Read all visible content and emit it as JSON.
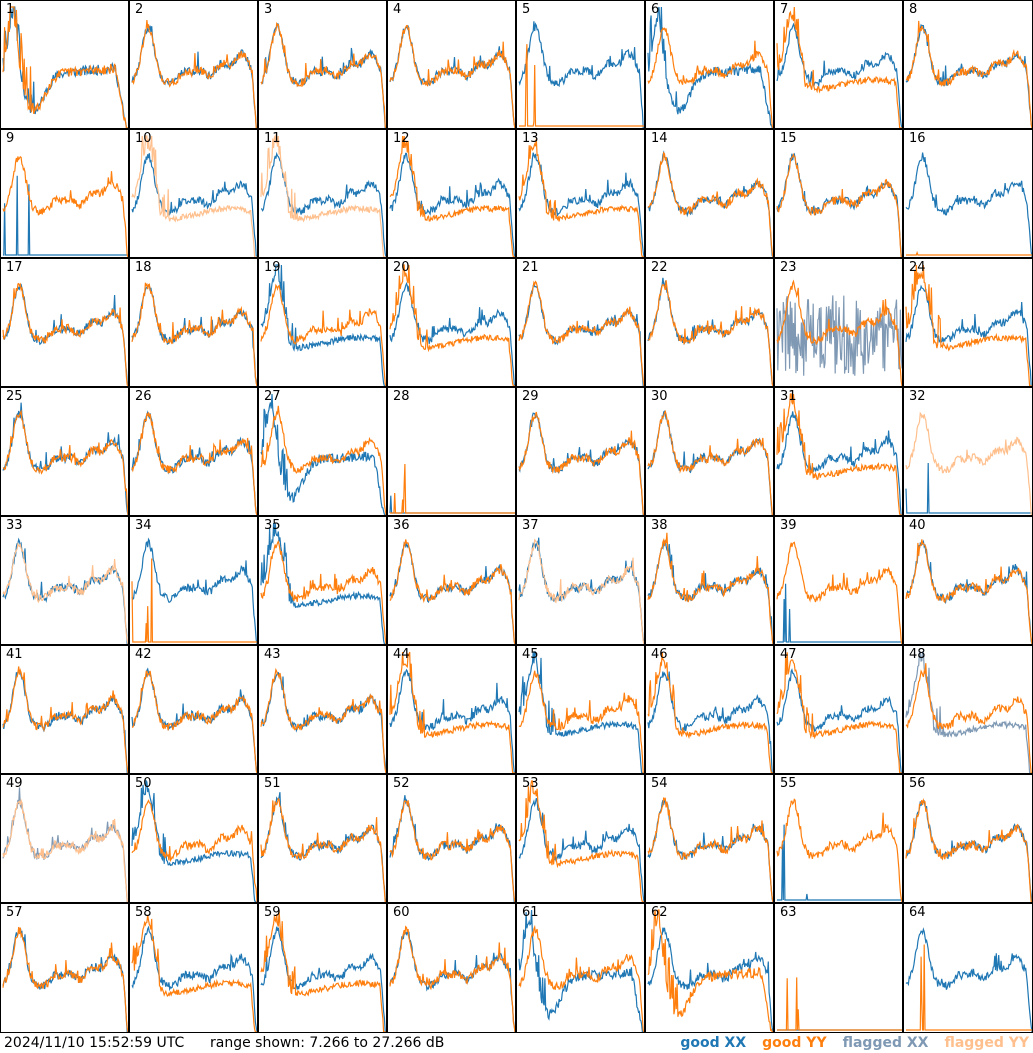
{
  "footer": {
    "timestamp": "2024/11/10 15:52:59 UTC",
    "range_text": "range shown: 7.266 to 27.266 dB"
  },
  "legend": [
    {
      "label": "good XX",
      "color": "#1f77b4"
    },
    {
      "label": "good YY",
      "color": "#ff7f0e"
    },
    {
      "label": "flagged XX",
      "color": "#7f99b4"
    },
    {
      "label": "flagged YY",
      "color": "#ffc08e"
    }
  ],
  "colors": {
    "good_xx": "#1f77b4",
    "good_yy": "#ff7f0e",
    "flagged_xx": "#7f99b4",
    "flagged_yy": "#ffc08e"
  },
  "chart_data": {
    "type": "line",
    "range_db": [
      7.266,
      27.266
    ],
    "grid_rows": 8,
    "grid_cols": 8,
    "panels": [
      {
        "id": "1",
        "xx": "good",
        "yy": "good",
        "xx_style": "sag",
        "yy_style": "sag"
      },
      {
        "id": "2",
        "xx": "good",
        "yy": "good",
        "xx_style": "normal",
        "yy_style": "normal"
      },
      {
        "id": "3",
        "xx": "good",
        "yy": "good",
        "xx_style": "normal",
        "yy_style": "normal"
      },
      {
        "id": "4",
        "xx": "good",
        "yy": "good",
        "xx_style": "normal",
        "yy_style": "normal"
      },
      {
        "id": "5",
        "xx": "good",
        "yy": "good",
        "xx_style": "normal",
        "yy_style": "dead"
      },
      {
        "id": "6",
        "xx": "good",
        "yy": "good",
        "xx_style": "sag",
        "yy_style": "normal"
      },
      {
        "id": "7",
        "xx": "good",
        "yy": "good",
        "xx_style": "normal",
        "yy_style": "low"
      },
      {
        "id": "8",
        "xx": "good",
        "yy": "good",
        "xx_style": "normal",
        "yy_style": "normal"
      },
      {
        "id": "9",
        "xx": "good",
        "yy": "good",
        "xx_style": "dead",
        "yy_style": "normal"
      },
      {
        "id": "10",
        "xx": "good",
        "yy": "flagged",
        "xx_style": "normal",
        "yy_style": "low"
      },
      {
        "id": "11",
        "xx": "good",
        "yy": "flagged",
        "xx_style": "normal",
        "yy_style": "low"
      },
      {
        "id": "12",
        "xx": "good",
        "yy": "good",
        "xx_style": "normal",
        "yy_style": "low"
      },
      {
        "id": "13",
        "xx": "good",
        "yy": "good",
        "xx_style": "normal",
        "yy_style": "low"
      },
      {
        "id": "14",
        "xx": "good",
        "yy": "good",
        "xx_style": "normal",
        "yy_style": "normal"
      },
      {
        "id": "15",
        "xx": "good",
        "yy": "good",
        "xx_style": "normal",
        "yy_style": "normal"
      },
      {
        "id": "16",
        "xx": "good",
        "yy": "good",
        "xx_style": "normal",
        "yy_style": "dead"
      },
      {
        "id": "17",
        "xx": "good",
        "yy": "good",
        "xx_style": "normal",
        "yy_style": "normal"
      },
      {
        "id": "18",
        "xx": "good",
        "yy": "good",
        "xx_style": "normal",
        "yy_style": "normal"
      },
      {
        "id": "19",
        "xx": "good",
        "yy": "good",
        "xx_style": "low",
        "yy_style": "normal"
      },
      {
        "id": "20",
        "xx": "good",
        "yy": "good",
        "xx_style": "normal",
        "yy_style": "low"
      },
      {
        "id": "21",
        "xx": "good",
        "yy": "good",
        "xx_style": "normal",
        "yy_style": "normal"
      },
      {
        "id": "22",
        "xx": "good",
        "yy": "good",
        "xx_style": "normal",
        "yy_style": "normal"
      },
      {
        "id": "23",
        "xx": "flagged",
        "yy": "good",
        "xx_style": "noise",
        "yy_style": "normal"
      },
      {
        "id": "24",
        "xx": "good",
        "yy": "good",
        "xx_style": "normal",
        "yy_style": "low"
      },
      {
        "id": "25",
        "xx": "good",
        "yy": "good",
        "xx_style": "normal",
        "yy_style": "normal"
      },
      {
        "id": "26",
        "xx": "good",
        "yy": "good",
        "xx_style": "normal",
        "yy_style": "normal"
      },
      {
        "id": "27",
        "xx": "good",
        "yy": "good",
        "xx_style": "sag",
        "yy_style": "normal"
      },
      {
        "id": "28",
        "xx": "good",
        "yy": "good",
        "xx_style": "dead",
        "yy_style": "dead"
      },
      {
        "id": "29",
        "xx": "good",
        "yy": "good",
        "xx_style": "normal",
        "yy_style": "normal"
      },
      {
        "id": "30",
        "xx": "good",
        "yy": "good",
        "xx_style": "normal",
        "yy_style": "normal"
      },
      {
        "id": "31",
        "xx": "good",
        "yy": "good",
        "xx_style": "normal",
        "yy_style": "low"
      },
      {
        "id": "32",
        "xx": "good",
        "yy": "flagged",
        "xx_style": "dead",
        "yy_style": "normal"
      },
      {
        "id": "33",
        "xx": "good",
        "yy": "flagged",
        "xx_style": "normal",
        "yy_style": "normal"
      },
      {
        "id": "34",
        "xx": "good",
        "yy": "good",
        "xx_style": "normal",
        "yy_style": "dead"
      },
      {
        "id": "35",
        "xx": "good",
        "yy": "good",
        "xx_style": "low",
        "yy_style": "normal"
      },
      {
        "id": "36",
        "xx": "good",
        "yy": "good",
        "xx_style": "normal",
        "yy_style": "normal"
      },
      {
        "id": "37",
        "xx": "good",
        "yy": "flagged",
        "xx_style": "normal",
        "yy_style": "normal"
      },
      {
        "id": "38",
        "xx": "good",
        "yy": "good",
        "xx_style": "normal",
        "yy_style": "normal"
      },
      {
        "id": "39",
        "xx": "good",
        "yy": "good",
        "xx_style": "dead",
        "yy_style": "normal"
      },
      {
        "id": "40",
        "xx": "good",
        "yy": "good",
        "xx_style": "normal",
        "yy_style": "normal"
      },
      {
        "id": "41",
        "xx": "good",
        "yy": "good",
        "xx_style": "normal",
        "yy_style": "normal"
      },
      {
        "id": "42",
        "xx": "good",
        "yy": "good",
        "xx_style": "normal",
        "yy_style": "normal"
      },
      {
        "id": "43",
        "xx": "good",
        "yy": "good",
        "xx_style": "normal",
        "yy_style": "normal"
      },
      {
        "id": "44",
        "xx": "good",
        "yy": "good",
        "xx_style": "normal",
        "yy_style": "low"
      },
      {
        "id": "45",
        "xx": "good",
        "yy": "good",
        "xx_style": "low",
        "yy_style": "normal"
      },
      {
        "id": "46",
        "xx": "good",
        "yy": "good",
        "xx_style": "normal",
        "yy_style": "low"
      },
      {
        "id": "47",
        "xx": "good",
        "yy": "good",
        "xx_style": "normal",
        "yy_style": "low"
      },
      {
        "id": "48",
        "xx": "flagged",
        "yy": "good",
        "xx_style": "low",
        "yy_style": "normal"
      },
      {
        "id": "49",
        "xx": "flagged",
        "yy": "flagged",
        "xx_style": "normal",
        "yy_style": "normal"
      },
      {
        "id": "50",
        "xx": "good",
        "yy": "good",
        "xx_style": "low",
        "yy_style": "normal"
      },
      {
        "id": "51",
        "xx": "good",
        "yy": "good",
        "xx_style": "normal",
        "yy_style": "normal"
      },
      {
        "id": "52",
        "xx": "good",
        "yy": "good",
        "xx_style": "normal",
        "yy_style": "normal"
      },
      {
        "id": "53",
        "xx": "good",
        "yy": "good",
        "xx_style": "normal",
        "yy_style": "low"
      },
      {
        "id": "54",
        "xx": "good",
        "yy": "good",
        "xx_style": "normal",
        "yy_style": "normal"
      },
      {
        "id": "55",
        "xx": "good",
        "yy": "good",
        "xx_style": "dead",
        "yy_style": "normal"
      },
      {
        "id": "56",
        "xx": "good",
        "yy": "good",
        "xx_style": "normal",
        "yy_style": "normal"
      },
      {
        "id": "57",
        "xx": "good",
        "yy": "good",
        "xx_style": "normal",
        "yy_style": "normal"
      },
      {
        "id": "58",
        "xx": "good",
        "yy": "good",
        "xx_style": "normal",
        "yy_style": "low"
      },
      {
        "id": "59",
        "xx": "good",
        "yy": "good",
        "xx_style": "normal",
        "yy_style": "low"
      },
      {
        "id": "60",
        "xx": "good",
        "yy": "good",
        "xx_style": "normal",
        "yy_style": "normal"
      },
      {
        "id": "61",
        "xx": "good",
        "yy": "good",
        "xx_style": "sag",
        "yy_style": "normal"
      },
      {
        "id": "62",
        "xx": "good",
        "yy": "good",
        "xx_style": "normal",
        "yy_style": "sag"
      },
      {
        "id": "63",
        "xx": "good",
        "yy": "good",
        "xx_style": "dead",
        "yy_style": "dead"
      },
      {
        "id": "64",
        "xx": "good",
        "yy": "good",
        "xx_style": "normal",
        "yy_style": "dead"
      }
    ]
  }
}
